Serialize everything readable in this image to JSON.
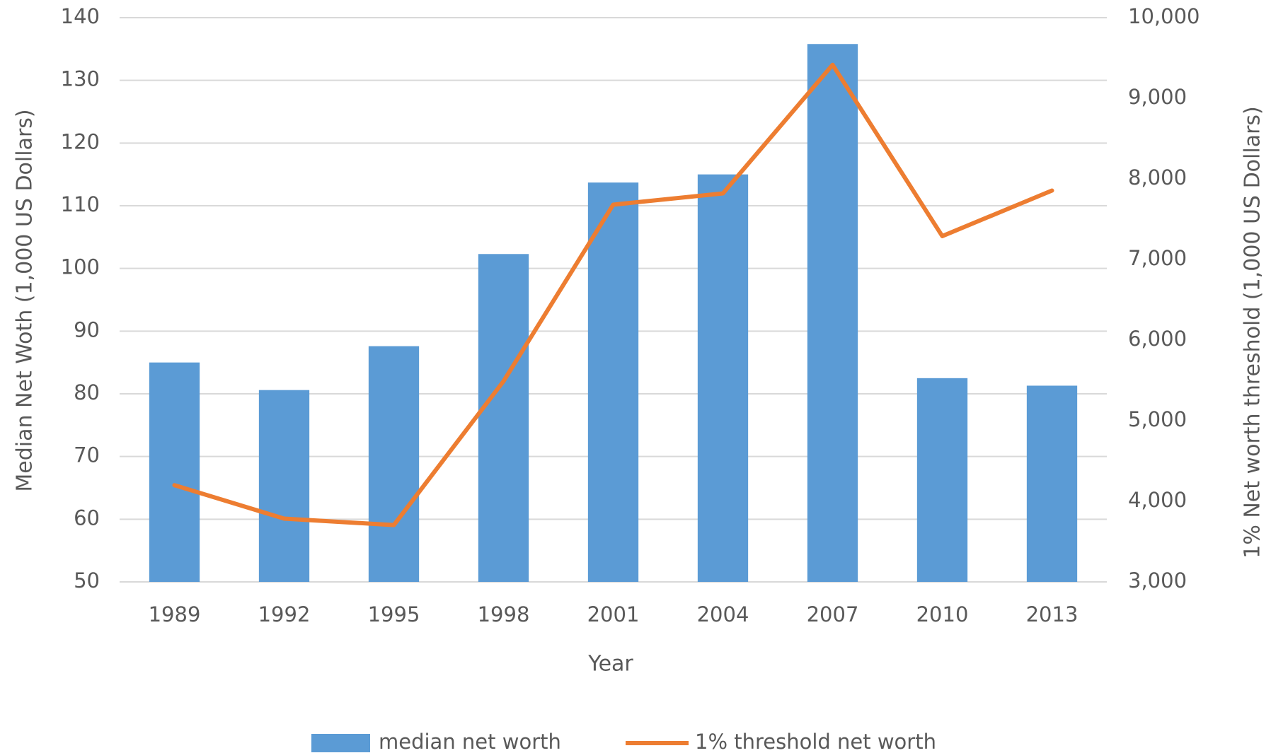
{
  "chart_data": {
    "type": "bar-line",
    "xlabel": "Year",
    "ylabel": "Median Net Woth (1,000 US Dollars)",
    "y2label": "1% Net  worth threshold (1,000 US Dollars)",
    "categories": [
      "1989",
      "1992",
      "1995",
      "1998",
      "2001",
      "2004",
      "2007",
      "2010",
      "2013"
    ],
    "series": [
      {
        "name": "median net worth",
        "type": "bar",
        "color": "#5b9bd5",
        "values": [
          85,
          80.6,
          87.6,
          102.3,
          113.7,
          115,
          135.8,
          82.5,
          81.3
        ]
      },
      {
        "name": "1% threshold net worth",
        "type": "line",
        "axis": "y2",
        "color": "#ed7d31",
        "values": [
          4200,
          3785,
          3705,
          5490,
          7680,
          7820,
          9415,
          7290,
          7855
        ]
      }
    ],
    "ylim": [
      50,
      140
    ],
    "yticks": [
      50,
      60,
      70,
      80,
      90,
      100,
      110,
      120,
      130,
      140
    ],
    "y2lim": [
      3000,
      10000
    ],
    "y2ticks": [
      {
        "value": 3000,
        "label": "3,000"
      },
      {
        "value": 4000,
        "label": "4,000"
      },
      {
        "value": 5000,
        "label": "5,000"
      },
      {
        "value": 6000,
        "label": "6,000"
      },
      {
        "value": 7000,
        "label": "7,000"
      },
      {
        "value": 8000,
        "label": "8,000"
      },
      {
        "value": 9000,
        "label": "9,000"
      },
      {
        "value": 10000,
        "label": "10,000"
      }
    ],
    "grid": true,
    "legend": "bottom"
  }
}
